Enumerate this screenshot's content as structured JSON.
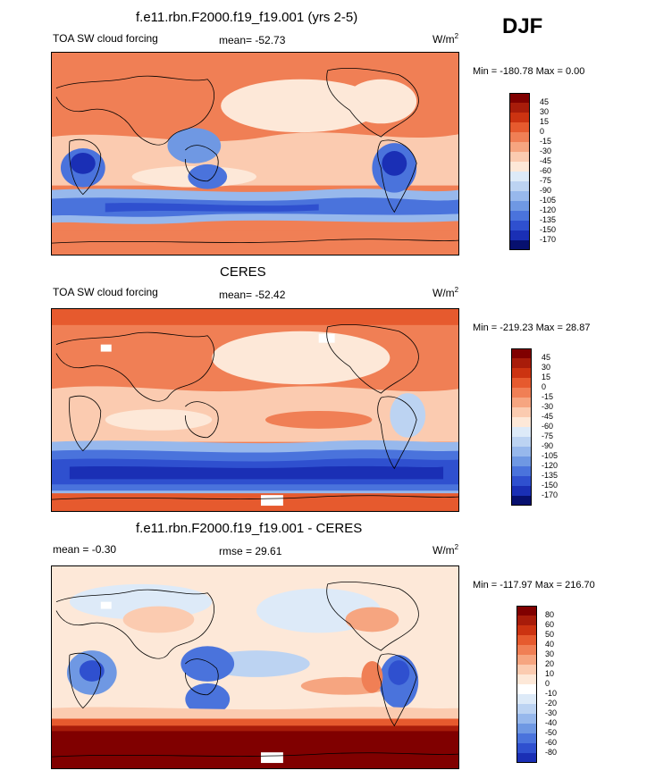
{
  "season": "DJF",
  "panels": [
    {
      "title": "f.e11.rbn.F2000.f19_f19.001 (yrs 2-5)",
      "left_label": "TOA SW cloud forcing",
      "center_label": "mean= -52.73",
      "units": "W/m",
      "units_sup": "2",
      "minmax": "Min = -180.78 Max =   0.00",
      "colorbar_labels": [
        "45",
        "30",
        "15",
        "0",
        "-15",
        "-30",
        "-45",
        "-60",
        "-75",
        "-90",
        "-105",
        "-120",
        "-135",
        "-150",
        "-170"
      ]
    },
    {
      "title": "CERES",
      "left_label": "TOA SW cloud forcing",
      "center_label": "mean= -52.42",
      "units": "W/m",
      "units_sup": "2",
      "minmax": "Min = -219.23 Max =  28.87",
      "colorbar_labels": [
        "45",
        "30",
        "15",
        "0",
        "-15",
        "-30",
        "-45",
        "-60",
        "-75",
        "-90",
        "-105",
        "-120",
        "-135",
        "-150",
        "-170"
      ]
    },
    {
      "title": "f.e11.rbn.F2000.f19_f19.001 - CERES",
      "left_label": "mean =  -0.30",
      "center_label": "rmse =  29.61",
      "units": "W/m",
      "units_sup": "2",
      "minmax": "Min = -117.97 Max = 216.70",
      "colorbar_labels": [
        "80",
        "60",
        "50",
        "40",
        "30",
        "20",
        "10",
        "0",
        "-10",
        "-20",
        "-30",
        "-40",
        "-50",
        "-60",
        "-80"
      ]
    }
  ],
  "colors": {
    "abs_scale": [
      "#800000",
      "#a81c0a",
      "#cc3311",
      "#e65a2e",
      "#f07f55",
      "#f6a580",
      "#fbcbb0",
      "#fde8d8",
      "#ddeaf8",
      "#bcd3f2",
      "#97b8ec",
      "#6f98e3",
      "#4a73dc",
      "#2f50cf",
      "#1a2fb5",
      "#07106f"
    ],
    "diff_scale": [
      "#800000",
      "#a81c0a",
      "#cc3311",
      "#e65a2e",
      "#f07f55",
      "#f6a580",
      "#fbcbb0",
      "#fde8d8",
      "#ffffff",
      "#ddeaf8",
      "#bcd3f2",
      "#97b8ec",
      "#6f98e3",
      "#4a73dc",
      "#2f50cf",
      "#1a2fb5",
      "#07106f"
    ]
  }
}
